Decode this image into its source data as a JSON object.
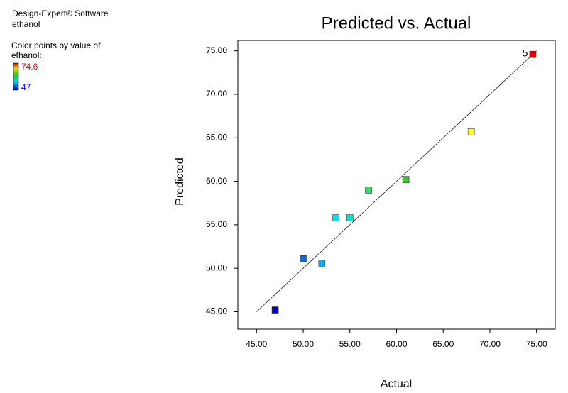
{
  "header": {
    "software": "Design-Expert® Software",
    "response": "ethanol",
    "color_note": "Color points by value of ethanol:",
    "color_max": 74.6,
    "color_min": 47
  },
  "chart_data": {
    "type": "scatter",
    "title": "Predicted vs. Actual",
    "xlabel": "Actual",
    "ylabel": "Predicted",
    "x": [
      47.0,
      50.0,
      52.0,
      53.5,
      55.0,
      57.0,
      61.0,
      68.0,
      74.6
    ],
    "values": [
      45.2,
      51.1,
      50.6,
      55.8,
      55.8,
      59.0,
      60.2,
      65.7,
      74.6
    ],
    "colors": [
      "#0000cc",
      "#1166dd",
      "#11aaee",
      "#11ddee",
      "#11ddcc",
      "#33dd66",
      "#33cc22",
      "#ffff22",
      "#dd0000"
    ],
    "reference_line": {
      "x": [
        45,
        75
      ],
      "y": [
        45,
        75
      ]
    },
    "annotations": [
      {
        "text": "5",
        "x": 74.6,
        "y": 74.6
      }
    ],
    "xlim": [
      43,
      77
    ],
    "ylim": [
      43,
      76.2
    ],
    "xticks": [
      {
        "value": 45,
        "label": "45.00"
      },
      {
        "value": 50,
        "label": "50.00"
      },
      {
        "value": 55,
        "label": "55.00"
      },
      {
        "value": 60,
        "label": "60.00"
      },
      {
        "value": 65,
        "label": "65.00"
      },
      {
        "value": 70,
        "label": "70.00"
      },
      {
        "value": 75,
        "label": "75.00"
      }
    ],
    "yticks": [
      {
        "value": 45,
        "label": "45.00"
      },
      {
        "value": 50,
        "label": "50.00"
      },
      {
        "value": 55,
        "label": "55.00"
      },
      {
        "value": 60,
        "label": "60.00"
      },
      {
        "value": 65,
        "label": "65.00"
      },
      {
        "value": 70,
        "label": "70.00"
      },
      {
        "value": 75,
        "label": "75.00"
      }
    ]
  }
}
